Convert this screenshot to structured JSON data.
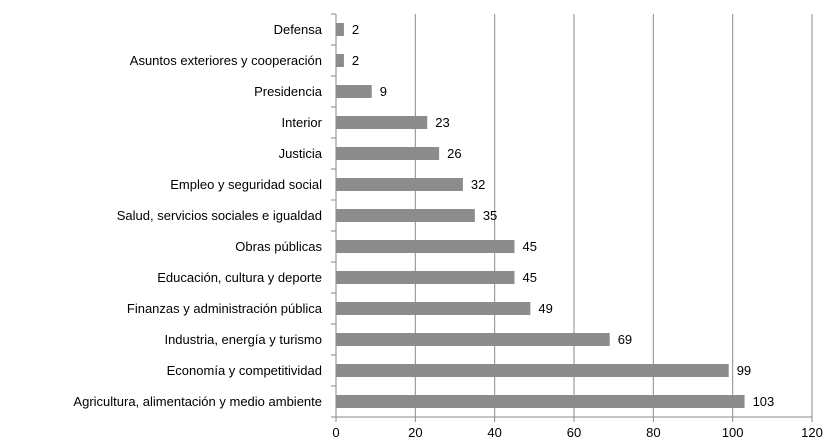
{
  "chart_data": {
    "type": "bar",
    "orientation": "horizontal",
    "categories": [
      "Defensa",
      "Asuntos exteriores y cooperación",
      "Presidencia",
      "Interior",
      "Justicia",
      "Empleo y seguridad social",
      "Salud, servicios sociales e igualdad",
      "Obras públicas",
      "Educación, cultura y deporte",
      "Finanzas y administración pública",
      "Industria, energía y turismo",
      "Economía y competitividad",
      "Agricultura, alimentación y medio ambiente"
    ],
    "values": [
      2,
      2,
      9,
      23,
      26,
      32,
      35,
      45,
      45,
      49,
      69,
      99,
      103
    ],
    "data_labels": [
      "2",
      "2",
      "9",
      "23",
      "26",
      "32",
      "35",
      "45",
      "45",
      "49",
      "69",
      "99",
      "103"
    ],
    "xlim": [
      0,
      120
    ],
    "xticks": [
      "0",
      "20",
      "40",
      "60",
      "80",
      "100",
      "120"
    ],
    "grid": "vertical",
    "legend": "none",
    "colors": {
      "bar": "#8c8c8c",
      "grid": "#8a8a8a",
      "axis": "#8a8a8a",
      "text": "#000000"
    }
  }
}
